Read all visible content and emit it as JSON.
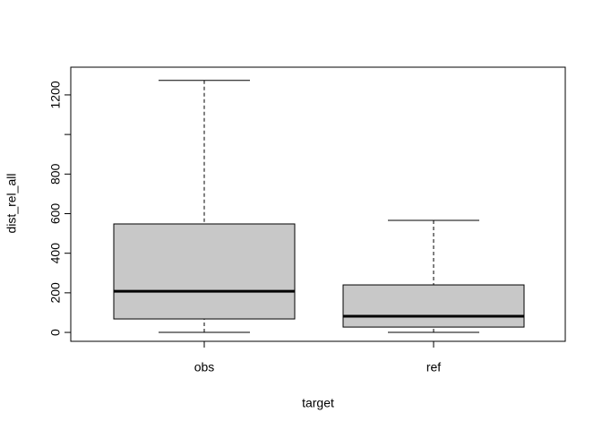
{
  "chart_data": {
    "type": "box",
    "x_label": "target",
    "y_label": "dist_rel_all",
    "categories": [
      "obs",
      "ref"
    ],
    "boxes": [
      {
        "low": 0,
        "q1": 68,
        "median": 208,
        "q3": 548,
        "high": 1273
      },
      {
        "low": 0,
        "q1": 27,
        "median": 82,
        "q3": 240,
        "high": 566
      }
    ],
    "color": "#c8c8c8",
    "ylim": [
      -45,
      1340
    ],
    "yticks": [
      0,
      200,
      400,
      600,
      800,
      {
        "value": 1000,
        "label": null
      },
      1200
    ]
  }
}
